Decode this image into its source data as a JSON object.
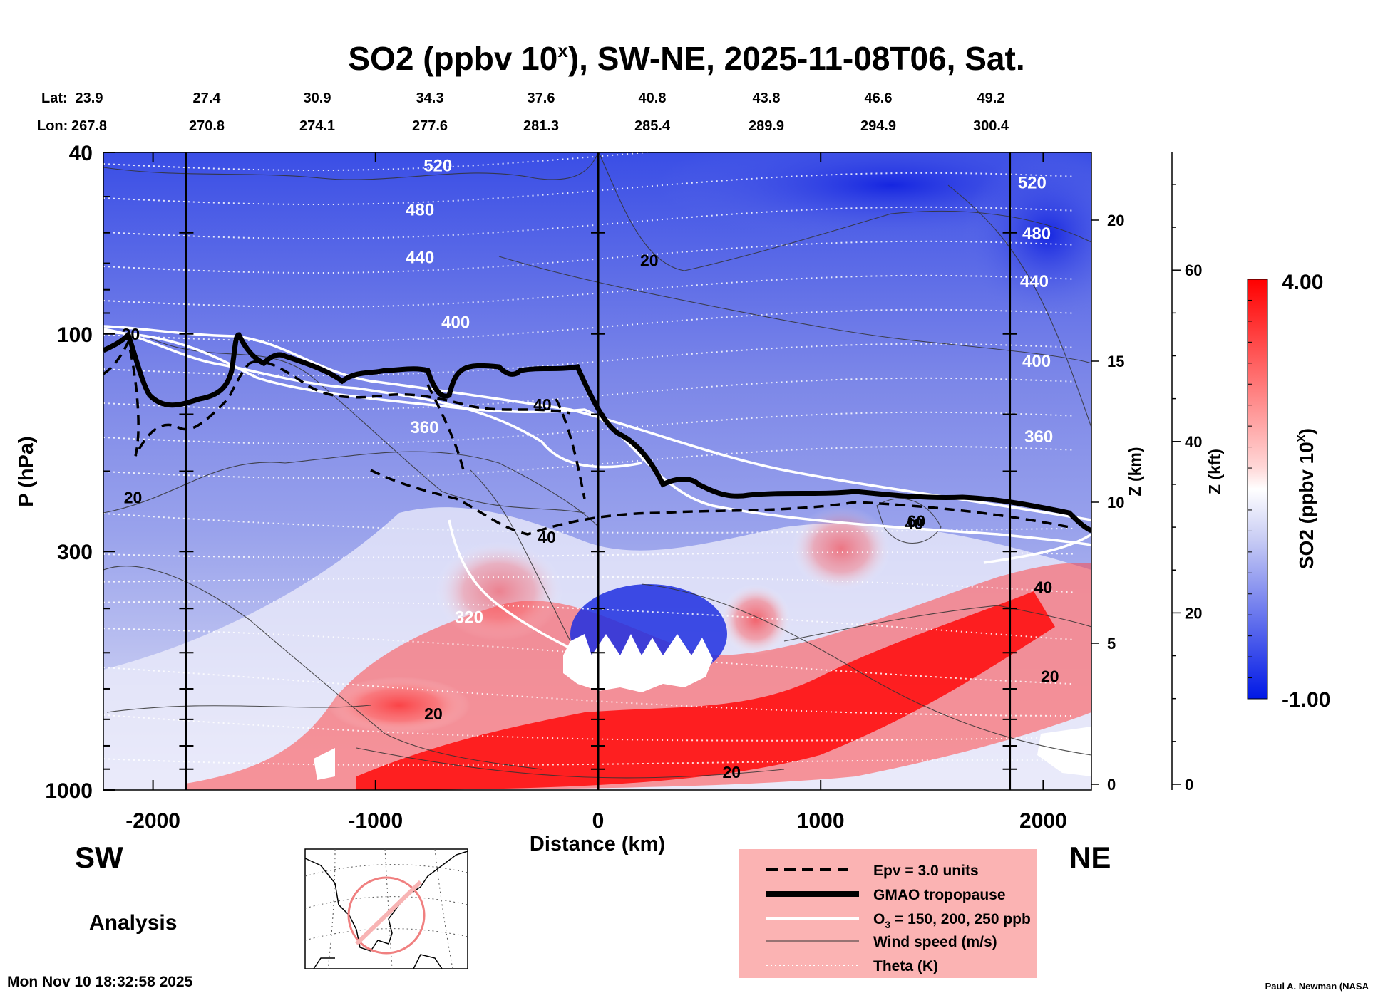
{
  "header": {
    "title_main": "SO2 (ppbv 10",
    "title_sup": "x",
    "title_rest": "), SW-NE, 2025-11-08T06, Sat."
  },
  "top_axes": {
    "lat_label": "Lat:",
    "lon_label": "Lon:",
    "lat": [
      "23.9",
      "27.4",
      "30.9",
      "34.3",
      "37.6",
      "40.8",
      "43.8",
      "46.6",
      "49.2"
    ],
    "lon": [
      "267.8",
      "270.8",
      "274.1",
      "277.6",
      "281.3",
      "285.4",
      "289.9",
      "294.9",
      "300.4"
    ]
  },
  "chart_data": {
    "type": "heatmap",
    "title": "SO2 (ppbv 10^x), SW-NE, 2025-11-08T06, Sat.",
    "xlabel": "Distance (km)",
    "ylabel": "P (hPa)",
    "xlim": [
      -2230,
      2230
    ],
    "ylim_hpa": [
      1000,
      40
    ],
    "y_scale": "log",
    "x_ticks": [
      -2000,
      -1000,
      0,
      1000,
      2000
    ],
    "x_tick_labels": [
      "-2000",
      "-1000",
      "0",
      "1000",
      "2000"
    ],
    "y_ticks": [
      1000,
      300,
      100,
      40
    ],
    "y_tick_labels": [
      "1000",
      "300",
      "100",
      "40"
    ],
    "z_km_label": "Z (km)",
    "z_km_ticks": [
      0,
      5,
      10,
      15,
      20
    ],
    "z_km_tick_labels": [
      "0",
      "5",
      "10",
      "15",
      "20"
    ],
    "z_kft_label": "Z (kft)",
    "z_kft_ticks": [
      0,
      20,
      40,
      60
    ],
    "z_kft_tick_labels": [
      "0",
      "20",
      "40",
      "60"
    ],
    "vertical_lines_km": [
      -1850,
      0,
      1850
    ],
    "colorbar": {
      "label_main": "SO2 (ppbv 10",
      "label_sup": "x",
      "label_rest": ")",
      "max": 4.0,
      "min": -1.0,
      "max_label": "4.00",
      "min_label": "-1.00",
      "colors": [
        "#0018e6",
        "#ffffff",
        "#ff0000"
      ]
    },
    "theta_labels": [
      {
        "text": "520",
        "x": -720,
        "p": 44
      },
      {
        "text": "480",
        "x": -800,
        "p": 55
      },
      {
        "text": "440",
        "x": -800,
        "p": 70
      },
      {
        "text": "400",
        "x": -640,
        "p": 97
      },
      {
        "text": "360",
        "x": -780,
        "p": 165
      },
      {
        "text": "320",
        "x": -580,
        "p": 430
      },
      {
        "text": "520",
        "x": 1950,
        "p": 48
      },
      {
        "text": "480",
        "x": 1970,
        "p": 62
      },
      {
        "text": "440",
        "x": 1960,
        "p": 79
      },
      {
        "text": "400",
        "x": 1970,
        "p": 118
      },
      {
        "text": "360",
        "x": 1980,
        "p": 173
      }
    ],
    "wind_labels": [
      {
        "text": "20",
        "x": 230,
        "p": 71
      },
      {
        "text": "20",
        "x": -2090,
        "p": 235
      },
      {
        "text": "40",
        "x": -230,
        "p": 287
      },
      {
        "text": "40",
        "x": 1420,
        "p": 268
      },
      {
        "text": "60",
        "x": 1430,
        "p": 265
      },
      {
        "text": "40",
        "x": 2000,
        "p": 370
      },
      {
        "text": "20",
        "x": 2030,
        "p": 580
      },
      {
        "text": "20",
        "x": -740,
        "p": 700
      },
      {
        "text": "20",
        "x": 600,
        "p": 940
      },
      {
        "text": "20",
        "x": -2100,
        "p": 103
      },
      {
        "text": "40",
        "x": -250,
        "p": 147
      }
    ]
  },
  "labels": {
    "sw": "SW",
    "ne": "NE",
    "analysis": "Analysis",
    "timestamp": "Mon Nov 10 18:32:58 2025",
    "credit": "Paul A. Newman (NASA"
  },
  "legend": {
    "items": [
      {
        "label": "Epv = 3.0 units",
        "style": "dashed"
      },
      {
        "label": "GMAO tropopause",
        "style": "thick"
      },
      {
        "label": "O",
        "sub": "3",
        "rest": " = 150, 200, 250 ppb",
        "style": "white"
      },
      {
        "label": "Wind speed (m/s)",
        "style": "thin"
      },
      {
        "label": "Theta (K)",
        "style": "dotted"
      }
    ]
  }
}
